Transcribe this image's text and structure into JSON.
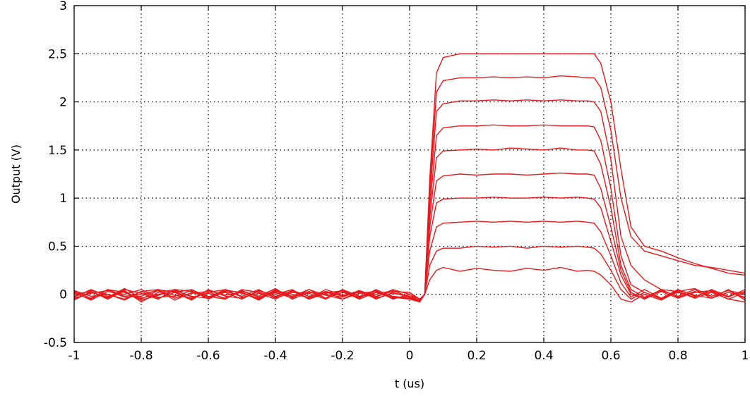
{
  "chart_data": {
    "type": "line",
    "title": "",
    "xlabel": "t (us)",
    "ylabel": "Output (V)",
    "xlim": [
      -1,
      1
    ],
    "ylim": [
      -0.5,
      3
    ],
    "xticks": [
      -1,
      -0.8,
      -0.6,
      -0.4,
      -0.2,
      0,
      0.2,
      0.4,
      0.6,
      0.8,
      1
    ],
    "xtick_labels": [
      "-1",
      "-0.8",
      "-0.6",
      "-0.4",
      "-0.2",
      "0",
      "0.2",
      "0.4",
      "0.6",
      "0.8",
      "1"
    ],
    "yticks": [
      -0.5,
      0,
      0.5,
      1,
      1.5,
      2,
      2.5,
      3
    ],
    "ytick_labels": [
      "-0.5",
      "0",
      "0.5",
      "1",
      "1.5",
      "2",
      "2.5",
      "3"
    ],
    "grid": true,
    "legend": false,
    "line_color": "#e8191c",
    "x": [
      -1,
      -0.95,
      -0.9,
      -0.85,
      -0.8,
      -0.75,
      -0.7,
      -0.65,
      -0.6,
      -0.55,
      -0.5,
      -0.45,
      -0.4,
      -0.35,
      -0.3,
      -0.25,
      -0.2,
      -0.15,
      -0.1,
      -0.05,
      0,
      0.03,
      0.045,
      0.06,
      0.08,
      0.1,
      0.15,
      0.2,
      0.25,
      0.3,
      0.35,
      0.4,
      0.45,
      0.5,
      0.53,
      0.55,
      0.57,
      0.6,
      0.63,
      0.66,
      0.7,
      0.75,
      0.8,
      0.85,
      0.9,
      0.95,
      1
    ],
    "series": [
      {
        "values": [
          0.0,
          0.03,
          -0.05,
          0.04,
          -0.08,
          0.02,
          0.05,
          -0.03,
          0.01,
          -0.04,
          0.03,
          -0.02,
          0.06,
          -0.05,
          0.02,
          0.0,
          -0.03,
          0.04,
          -0.02,
          0.03,
          0.02,
          -0.05,
          0.0,
          1.2,
          2.3,
          2.46,
          2.5,
          2.5,
          2.5,
          2.5,
          2.5,
          2.5,
          2.5,
          2.5,
          2.5,
          2.5,
          2.4,
          2.0,
          1.3,
          0.7,
          0.5,
          0.45,
          0.38,
          0.32,
          0.27,
          0.22,
          0.2
        ]
      },
      {
        "values": [
          -0.02,
          0.04,
          0.0,
          -0.06,
          0.03,
          -0.04,
          0.02,
          0.05,
          -0.03,
          0.02,
          -0.05,
          0.04,
          -0.02,
          0.03,
          -0.04,
          0.05,
          -0.01,
          0.02,
          -0.04,
          0.01,
          -0.02,
          -0.06,
          0.0,
          1.1,
          2.1,
          2.22,
          2.25,
          2.25,
          2.26,
          2.25,
          2.26,
          2.25,
          2.27,
          2.26,
          2.25,
          2.25,
          2.15,
          1.7,
          1.0,
          0.6,
          0.45,
          0.4,
          0.35,
          0.3,
          0.28,
          0.25,
          0.22
        ]
      },
      {
        "values": [
          0.03,
          -0.04,
          0.05,
          -0.02,
          0.0,
          0.04,
          -0.06,
          0.02,
          -0.03,
          0.05,
          0.01,
          -0.04,
          0.03,
          -0.02,
          0.05,
          -0.04,
          0.02,
          -0.03,
          0.04,
          -0.05,
          0.0,
          -0.07,
          0.0,
          1.0,
          1.9,
          1.98,
          2.01,
          2.01,
          2.02,
          2.01,
          2.02,
          2.01,
          2.02,
          2.01,
          2.01,
          2.0,
          1.9,
          1.4,
          0.6,
          0.3,
          0.15,
          0.05,
          0.03,
          0.06,
          -0.02,
          0.04,
          0.0
        ]
      },
      {
        "values": [
          -0.05,
          0.02,
          -0.03,
          0.06,
          -0.04,
          0.0,
          0.03,
          -0.05,
          0.04,
          -0.01,
          0.02,
          -0.06,
          0.04,
          0.0,
          -0.03,
          0.03,
          -0.05,
          0.01,
          0.03,
          -0.03,
          -0.05,
          -0.08,
          0.0,
          0.9,
          1.65,
          1.73,
          1.75,
          1.75,
          1.76,
          1.75,
          1.75,
          1.76,
          1.75,
          1.75,
          1.75,
          1.74,
          1.6,
          1.1,
          0.4,
          0.1,
          0.02,
          -0.04,
          0.05,
          -0.02,
          0.03,
          -0.05,
          0.02
        ]
      },
      {
        "values": [
          0.02,
          -0.06,
          0.03,
          0.0,
          0.05,
          -0.03,
          -0.02,
          0.04,
          -0.05,
          0.03,
          -0.02,
          0.05,
          -0.04,
          0.02,
          0.01,
          -0.05,
          0.04,
          -0.02,
          0.0,
          0.04,
          -0.03,
          -0.06,
          0.0,
          0.8,
          1.42,
          1.49,
          1.5,
          1.51,
          1.5,
          1.52,
          1.51,
          1.5,
          1.52,
          1.5,
          1.5,
          1.49,
          1.35,
          0.9,
          0.3,
          0.05,
          -0.03,
          0.04,
          -0.02,
          0.05,
          -0.04,
          0.02,
          -0.03
        ]
      },
      {
        "values": [
          -0.03,
          0.05,
          -0.02,
          0.03,
          -0.05,
          0.04,
          -0.01,
          -0.04,
          0.02,
          0.05,
          -0.03,
          0.01,
          -0.05,
          0.04,
          -0.02,
          0.02,
          0.03,
          -0.05,
          0.02,
          -0.02,
          -0.04,
          -0.07,
          0.0,
          0.7,
          1.18,
          1.23,
          1.25,
          1.24,
          1.25,
          1.25,
          1.24,
          1.25,
          1.26,
          1.25,
          1.25,
          1.24,
          1.1,
          0.7,
          0.25,
          0.02,
          -0.05,
          0.03,
          -0.04,
          0.02,
          0.04,
          -0.03,
          0.05
        ]
      },
      {
        "values": [
          0.04,
          -0.02,
          0.0,
          -0.05,
          0.03,
          0.05,
          -0.04,
          0.01,
          0.03,
          -0.05,
          0.04,
          -0.03,
          0.02,
          -0.04,
          0.05,
          -0.01,
          -0.05,
          0.03,
          -0.03,
          0.05,
          0.0,
          -0.05,
          0.0,
          0.6,
          0.95,
          0.99,
          1.0,
          1.0,
          1.01,
          1.0,
          1.0,
          1.01,
          1.0,
          1.01,
          1.0,
          0.99,
          0.9,
          0.55,
          0.2,
          0.0,
          -0.04,
          0.05,
          -0.03,
          0.03,
          -0.02,
          0.04,
          -0.04
        ]
      },
      {
        "values": [
          -0.04,
          0.01,
          0.04,
          -0.03,
          -0.02,
          0.05,
          0.02,
          -0.06,
          0.05,
          -0.02,
          -0.04,
          0.03,
          0.0,
          0.05,
          -0.05,
          0.03,
          -0.02,
          0.04,
          -0.05,
          0.02,
          -0.03,
          -0.06,
          0.0,
          0.45,
          0.7,
          0.74,
          0.75,
          0.76,
          0.75,
          0.76,
          0.75,
          0.76,
          0.75,
          0.76,
          0.75,
          0.74,
          0.65,
          0.4,
          0.12,
          -0.03,
          0.05,
          -0.04,
          0.02,
          -0.03,
          0.05,
          -0.02,
          0.03
        ]
      },
      {
        "values": [
          0.01,
          -0.05,
          0.05,
          0.02,
          -0.06,
          -0.01,
          0.04,
          -0.02,
          -0.04,
          0.04,
          0.02,
          -0.05,
          0.05,
          -0.03,
          0.03,
          -0.04,
          0.05,
          -0.02,
          0.02,
          -0.04,
          -0.02,
          -0.06,
          0.0,
          0.3,
          0.45,
          0.48,
          0.48,
          0.5,
          0.49,
          0.5,
          0.48,
          0.5,
          0.49,
          0.5,
          0.49,
          0.48,
          0.42,
          0.25,
          0.05,
          -0.05,
          0.02,
          -0.05,
          0.04,
          -0.01,
          -0.04,
          0.05,
          -0.06
        ]
      },
      {
        "values": [
          -0.06,
          0.03,
          -0.04,
          0.05,
          0.01,
          -0.05,
          0.05,
          0.03,
          -0.02,
          -0.05,
          0.05,
          0.02,
          -0.03,
          0.04,
          -0.05,
          0.01,
          0.04,
          -0.04,
          0.05,
          -0.03,
          -0.04,
          -0.07,
          0.0,
          0.15,
          0.25,
          0.28,
          0.24,
          0.27,
          0.25,
          0.24,
          0.27,
          0.25,
          0.28,
          0.24,
          0.25,
          0.24,
          0.2,
          0.1,
          -0.05,
          -0.08,
          0.0,
          -0.06,
          0.03,
          -0.04,
          0.02,
          -0.05,
          -0.08
        ]
      }
    ]
  }
}
